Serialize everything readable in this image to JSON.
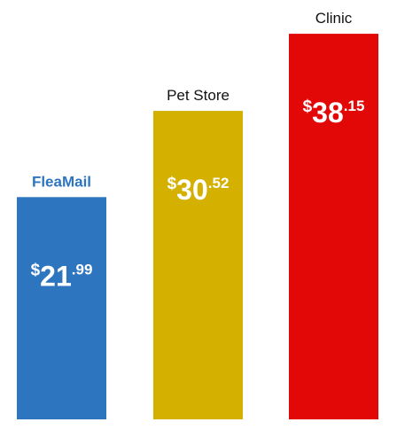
{
  "chart_data": {
    "type": "bar",
    "title": "",
    "xlabel": "",
    "ylabel": "",
    "ylim": [
      0,
      40
    ],
    "grid": false,
    "legend": "none",
    "categories": [
      "FleaMail",
      "Pet Store",
      "Clinic"
    ],
    "values": [
      21.99,
      30.52,
      38.15
    ],
    "colors": [
      "#2e75bf",
      "#d4b000",
      "#e20808"
    ],
    "category_label_colors": [
      "#2e75bf",
      "#111111",
      "#111111"
    ],
    "value_labels": [
      {
        "currency": "$",
        "whole": "21",
        "cents": ".99"
      },
      {
        "currency": "$",
        "whole": "30",
        "cents": ".52"
      },
      {
        "currency": "$",
        "whole": "38",
        "cents": ".15"
      }
    ],
    "value_label_color": "#ffffff"
  }
}
